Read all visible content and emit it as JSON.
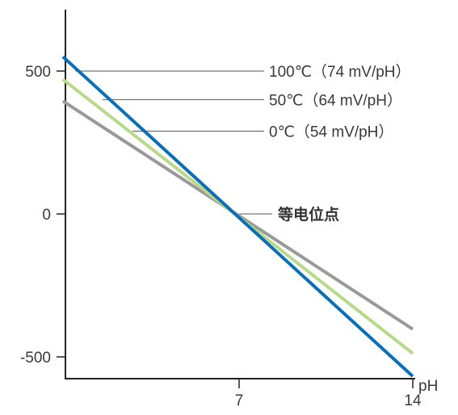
{
  "chart_data": {
    "type": "line",
    "xlabel": "pH",
    "ylabel": "",
    "xlim": [
      0,
      14
    ],
    "ylim": [
      -500,
      500
    ],
    "x_ticks": [
      "7",
      "14"
    ],
    "y_ticks": [
      "500",
      "0",
      "-500"
    ],
    "grid": false,
    "legend": "none (labels annotated on right)",
    "series": [
      {
        "name": "100℃（74 mV/pH）",
        "color": "#0a6fb8",
        "points": [
          [
            -0.1,
            550
          ],
          [
            14,
            -568
          ]
        ]
      },
      {
        "name": "50℃（64 mV/pH）",
        "color": "#b8d98a",
        "points": [
          [
            -0.1,
            471
          ],
          [
            14,
            -488
          ]
        ]
      },
      {
        "name": "0℃（54 mV/pH）",
        "color": "#999999",
        "points": [
          [
            -0.1,
            395
          ],
          [
            14,
            -403
          ]
        ]
      }
    ],
    "annotations": [
      {
        "id": "label-100",
        "text": "100℃（74 mV/pH）",
        "anchor": [
          0.4,
          500
        ]
      },
      {
        "id": "label-50",
        "text": "50℃（64 mV/pH）",
        "anchor": [
          1.5,
          400
        ]
      },
      {
        "id": "label-0",
        "text": "0℃（54 mV/pH）",
        "anchor": [
          2.7,
          290
        ]
      },
      {
        "id": "label-isopotential",
        "text": "等电位点",
        "anchor": [
          7,
          0
        ],
        "bold": true
      }
    ]
  }
}
